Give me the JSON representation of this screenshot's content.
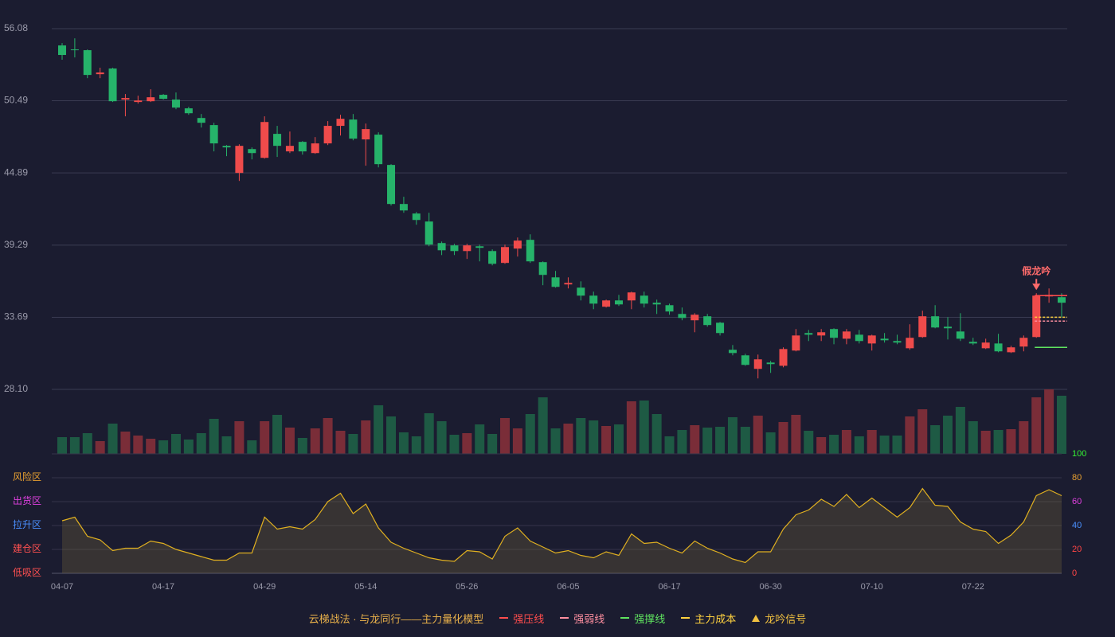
{
  "chart_data": {
    "type": "candlestick",
    "categories": [
      "04-07",
      null,
      null,
      null,
      null,
      null,
      null,
      null,
      "04-17",
      null,
      null,
      null,
      null,
      null,
      null,
      null,
      "04-29",
      null,
      null,
      null,
      null,
      null,
      null,
      null,
      "05-14",
      null,
      null,
      null,
      null,
      null,
      null,
      null,
      "05-26",
      null,
      null,
      null,
      null,
      null,
      null,
      null,
      "06-05",
      null,
      null,
      null,
      null,
      null,
      null,
      null,
      "06-17",
      null,
      null,
      null,
      null,
      null,
      null,
      null,
      "06-30",
      null,
      null,
      null,
      null,
      null,
      null,
      null,
      "07-10",
      null,
      null,
      null,
      null,
      null,
      null,
      null,
      "07-22",
      null,
      null,
      null,
      null,
      null,
      null,
      null
    ],
    "open": [
      54.78,
      54.47,
      54.41,
      52.55,
      52.99,
      50.58,
      50.39,
      50.45,
      50.95,
      50.58,
      49.9,
      49.15,
      48.6,
      46.99,
      44.89,
      46.74,
      46.06,
      47.92,
      46.56,
      47.3,
      46.43,
      47.18,
      48.54,
      49.03,
      47.49,
      47.86,
      45.51,
      42.48,
      41.74,
      41.12,
      39.45,
      39.27,
      38.83,
      39.2,
      38.83,
      37.91,
      39.02,
      39.7,
      37.97,
      36.79,
      36.24,
      35.99,
      35.37,
      34.51,
      35.0,
      35.0,
      35.37,
      34.82,
      34.63,
      33.95,
      33.46,
      33.77,
      33.27,
      31.17,
      30.74,
      29.69,
      30.18,
      29.93,
      31.11,
      32.47,
      32.28,
      32.78,
      32.03,
      32.34,
      31.66,
      32.03,
      31.85,
      31.29,
      32.16,
      33.77,
      32.96,
      32.59,
      31.79,
      31.29,
      31.66,
      30.98,
      31.42,
      32.16,
      35.31,
      35.25
    ],
    "high": [
      54.96,
      55.33,
      54.47,
      53.05,
      53.05,
      51.01,
      50.88,
      51.38,
      51.01,
      51.13,
      50.02,
      49.46,
      48.78,
      47.05,
      47.11,
      46.87,
      49.28,
      48.54,
      48.1,
      47.36,
      47.67,
      48.91,
      49.4,
      49.46,
      48.72,
      48.04,
      45.57,
      43.04,
      41.86,
      41.8,
      39.57,
      39.39,
      39.39,
      39.33,
      38.96,
      39.33,
      39.88,
      40.13,
      38.03,
      37.29,
      36.79,
      36.48,
      35.68,
      35.06,
      35.43,
      35.68,
      35.68,
      35.06,
      34.75,
      34.45,
      34.01,
      33.95,
      33.33,
      31.54,
      30.86,
      30.8,
      30.31,
      31.36,
      32.78,
      32.71,
      32.78,
      32.84,
      32.78,
      32.71,
      32.34,
      32.47,
      32.34,
      33.15,
      34.2,
      34.63,
      33.7,
      34.01,
      32.1,
      32.03,
      32.41,
      31.48,
      32.28,
      35.56,
      35.93,
      35.56
    ],
    "low": [
      53.67,
      53.85,
      52.24,
      52.24,
      50.39,
      49.28,
      50.27,
      50.39,
      50.58,
      49.83,
      49.4,
      48.41,
      46.56,
      46.19,
      44.27,
      45.94,
      46.0,
      46.13,
      46.43,
      46.31,
      46.37,
      47.05,
      47.79,
      47.42,
      45.45,
      45.32,
      42.36,
      41.8,
      40.87,
      39.2,
      38.52,
      38.52,
      38.22,
      38.03,
      37.72,
      37.84,
      38.4,
      37.91,
      36.18,
      35.99,
      35.93,
      35.0,
      34.32,
      34.45,
      34.57,
      34.32,
      34.45,
      33.95,
      33.89,
      33.46,
      32.53,
      32.96,
      32.28,
      30.74,
      29.93,
      28.95,
      29.38,
      29.81,
      31.05,
      31.85,
      31.85,
      31.6,
      31.6,
      31.66,
      31.11,
      31.73,
      31.6,
      31.17,
      32.1,
      32.84,
      31.97,
      31.85,
      31.54,
      31.23,
      30.98,
      30.92,
      31.05,
      32.1,
      34.82,
      33.7
    ],
    "close": [
      54.04,
      54.41,
      52.49,
      52.68,
      50.45,
      50.7,
      50.51,
      50.76,
      50.64,
      49.96,
      49.52,
      48.78,
      47.18,
      46.87,
      46.99,
      46.43,
      48.84,
      46.99,
      46.99,
      46.56,
      47.18,
      48.54,
      49.09,
      47.55,
      48.29,
      45.57,
      42.48,
      41.98,
      41.24,
      39.33,
      38.89,
      38.83,
      39.27,
      39.08,
      37.84,
      39.14,
      39.64,
      38.03,
      36.98,
      36.05,
      36.36,
      35.37,
      34.75,
      35.0,
      34.69,
      35.62,
      34.75,
      34.69,
      34.14,
      33.64,
      33.89,
      33.09,
      32.47,
      30.92,
      30.0,
      30.43,
      30.06,
      31.23,
      32.28,
      32.34,
      32.53,
      32.1,
      32.59,
      31.85,
      32.28,
      31.91,
      31.73,
      32.1,
      33.77,
      32.9,
      32.84,
      32.03,
      31.66,
      31.73,
      31.05,
      31.36,
      32.1,
      35.37,
      35.43,
      34.82
    ],
    "volume": [
      21,
      21,
      26,
      16,
      38,
      28,
      23,
      19,
      17,
      25,
      18,
      26,
      44,
      22,
      41,
      17,
      41,
      49,
      33,
      20,
      32,
      45,
      29,
      25,
      42,
      61,
      47,
      27,
      22,
      51,
      41,
      24,
      26,
      37,
      25,
      45,
      32,
      50,
      71,
      32,
      38,
      45,
      42,
      35,
      37,
      66,
      67,
      50,
      22,
      30,
      36,
      33,
      34,
      46,
      34,
      48,
      27,
      40,
      49,
      29,
      21,
      24,
      30,
      22,
      30,
      23,
      23,
      47,
      56,
      36,
      48,
      59,
      41,
      29,
      30,
      31,
      41,
      71,
      81,
      73
    ],
    "up_color": "#ef4b4b",
    "down_color": "#26b36a",
    "volume_up_color": "#7a2d38",
    "volume_down_color": "#1e5a44",
    "ylim": [
      28.1,
      56.08
    ],
    "yticks": [
      56.08,
      50.49,
      44.89,
      39.29,
      33.69,
      {
        "value": 28.1,
        "label": "28.10"
      }
    ],
    "grid": true,
    "levels": [
      {
        "name": "强压线",
        "value": 35.37,
        "color": "#ff4d4d",
        "dashed": false
      },
      {
        "name": "强弱线",
        "value": 33.4,
        "color": "#ff8fa0",
        "dashed": true
      },
      {
        "name": "强撑线",
        "value": 31.36,
        "color": "#5fe35f",
        "dashed": false
      },
      {
        "name": "主力成本",
        "value": 33.7,
        "color": "#ffd23f",
        "dashed": true
      }
    ],
    "signal": {
      "name": "龙吟信号",
      "color": "#f0c040",
      "annotation": {
        "text": "假龙吟",
        "index": 77,
        "color": "#ff6b6b"
      }
    },
    "legend_title": "云梯战法 · 与龙同行——主力量化模型",
    "oscillator": {
      "values": [
        44,
        47,
        31,
        28,
        19,
        21,
        21,
        27,
        25,
        20,
        17,
        14,
        11,
        11,
        17,
        17,
        47,
        37,
        39,
        37,
        45,
        60,
        67,
        50,
        58,
        38,
        26,
        21,
        17,
        13,
        11,
        10,
        19,
        18,
        12,
        31,
        38,
        27,
        22,
        17,
        19,
        15,
        13,
        18,
        15,
        33,
        25,
        26,
        21,
        17,
        27,
        21,
        17,
        12,
        9,
        18,
        18,
        37,
        49,
        53,
        62,
        56,
        66,
        55,
        63,
        55,
        47,
        55,
        71,
        57,
        56,
        43,
        37,
        35,
        25,
        32,
        43,
        65,
        70,
        65
      ],
      "color": "#e0b020",
      "ylim": [
        0,
        100
      ],
      "yticks": [
        0,
        20,
        40,
        60,
        80,
        100
      ],
      "ytick_colors": [
        "#ff4545",
        "#ff4545",
        "#4a90ff",
        "#e040e0",
        "#e8a030",
        "#33ee33"
      ],
      "zones": [
        {
          "name": "风险区",
          "value": 80,
          "color": "#e8a030"
        },
        {
          "name": "出货区",
          "value": 60,
          "color": "#e040e0"
        },
        {
          "name": "拉升区",
          "value": 40,
          "color": "#4a90ff"
        },
        {
          "name": "建仓区",
          "value": 20,
          "color": "#ff5050"
        },
        {
          "name": "低吸区",
          "value": 0,
          "color": "#ff5050"
        }
      ]
    }
  }
}
